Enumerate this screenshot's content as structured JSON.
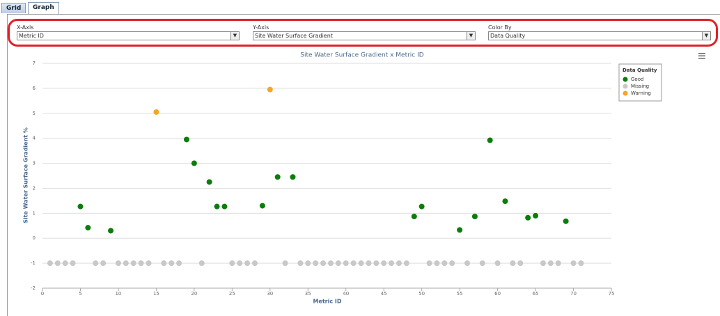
{
  "tabs": [
    "Grid",
    "Graph"
  ],
  "controls": [
    {
      "label": "X-Axis",
      "value": "Metric ID"
    },
    {
      "label": "Y-Axis",
      "value": "Site Water Surface Gradient"
    },
    {
      "label": "Color By",
      "value": "Data Quality"
    }
  ],
  "chart_data": {
    "type": "scatter",
    "title": "Site Water Surface Gradient x Metric ID",
    "x_label": "Metric ID",
    "y_label": "Site Water Surface Gradient %",
    "legend_title": "Data Quality",
    "xlim": [
      0,
      75
    ],
    "xticks": [
      0,
      5,
      10,
      15,
      20,
      25,
      30,
      35,
      40,
      45,
      50,
      55,
      60,
      65,
      70,
      75
    ],
    "ylim": [
      -2,
      7
    ],
    "yticks": [
      -2,
      -1,
      0,
      1,
      2,
      3,
      4,
      5,
      6,
      7
    ],
    "grid": true,
    "series": [
      {
        "name": "Good",
        "color": "#0a7d0a",
        "x": [
          5,
          6,
          9,
          19,
          20,
          22,
          23,
          24,
          29,
          31,
          33,
          49,
          50,
          55,
          57,
          59,
          61,
          64,
          65,
          69
        ],
        "values": [
          1.27,
          0.42,
          0.3,
          3.95,
          3.0,
          2.25,
          1.27,
          1.27,
          1.3,
          2.45,
          2.45,
          0.87,
          1.27,
          0.33,
          0.87,
          3.92,
          1.48,
          0.82,
          0.9,
          0.68
        ]
      },
      {
        "name": "Missing",
        "color": "#c8c8c8",
        "x": [
          1,
          2,
          3,
          4,
          7,
          8,
          10,
          11,
          12,
          13,
          14,
          16,
          17,
          18,
          21,
          25,
          26,
          27,
          28,
          32,
          34,
          35,
          36,
          37,
          38,
          39,
          40,
          41,
          42,
          43,
          44,
          45,
          46,
          47,
          48,
          51,
          52,
          53,
          54,
          56,
          58,
          60,
          62,
          63,
          66,
          67,
          68,
          70,
          71
        ],
        "values": [
          -1,
          -1,
          -1,
          -1,
          -1,
          -1,
          -1,
          -1,
          -1,
          -1,
          -1,
          -1,
          -1,
          -1,
          -1,
          -1,
          -1,
          -1,
          -1,
          -1,
          -1,
          -1,
          -1,
          -1,
          -1,
          -1,
          -1,
          -1,
          -1,
          -1,
          -1,
          -1,
          -1,
          -1,
          -1,
          -1,
          -1,
          -1,
          -1,
          -1,
          -1,
          -1,
          -1,
          -1,
          -1,
          -1,
          -1,
          -1,
          -1
        ]
      },
      {
        "name": "Warning",
        "color": "#f5a623",
        "x": [
          15,
          30
        ],
        "values": [
          5.05,
          5.95
        ]
      }
    ]
  }
}
